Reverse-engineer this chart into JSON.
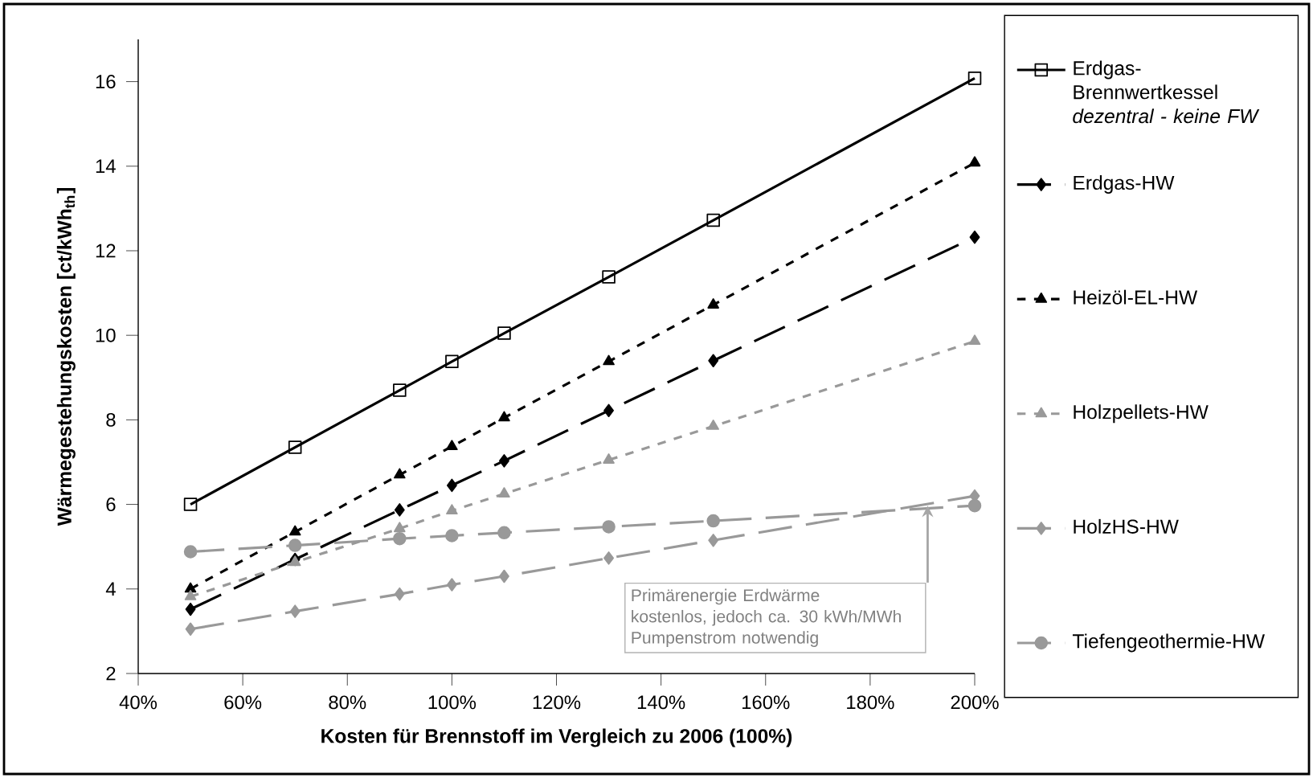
{
  "chart_data": {
    "type": "line",
    "xlabel": "Kosten für Brennstoff im Vergleich zu 2006 (100%)",
    "ylabel": "Wärmegestehungskosten [ct/kWh$_{th}$]",
    "x": [
      50,
      70,
      90,
      100,
      110,
      130,
      150,
      200
    ],
    "xlim": [
      40,
      200
    ],
    "ylim": [
      2,
      17
    ],
    "xticks": [
      {
        "value": 40,
        "label": "40%"
      },
      {
        "value": 60,
        "label": "60%"
      },
      {
        "value": 80,
        "label": "80%"
      },
      {
        "value": 100,
        "label": "100%"
      },
      {
        "value": 120,
        "label": "120%"
      },
      {
        "value": 140,
        "label": "140%"
      },
      {
        "value": 160,
        "label": "160%"
      },
      {
        "value": 180,
        "label": "180%"
      },
      {
        "value": 200,
        "label": "200%"
      }
    ],
    "yticks": [
      2,
      4,
      6,
      8,
      10,
      12,
      14,
      16
    ],
    "grid": false,
    "legend": "right",
    "series": [
      {
        "name": "Erdgas-Brennwertkessel *dezentral - keine FW*",
        "color": "#000000",
        "marker": "square",
        "line_style": "solid",
        "values": [
          6.0,
          7.35,
          8.7,
          9.38,
          10.05,
          11.38,
          12.72,
          16.08
        ]
      },
      {
        "name": "Erdgas-HW",
        "color": "#000000",
        "marker": "diamond",
        "line_style": "dashed",
        "values": [
          3.52,
          4.7,
          5.87,
          6.45,
          7.03,
          8.22,
          9.4,
          12.32
        ]
      },
      {
        "name": "Heizöl-EL-HW",
        "color": "#000000",
        "marker": "triangle",
        "line_style": "dotted",
        "values": [
          4.0,
          5.35,
          6.7,
          7.37,
          8.05,
          9.38,
          10.72,
          14.08
        ]
      },
      {
        "name": "Holzpellets-HW",
        "color": "#999999",
        "marker": "triangle",
        "line_style": "dotted",
        "values": [
          3.82,
          4.63,
          5.43,
          5.85,
          6.25,
          7.05,
          7.85,
          9.86
        ]
      },
      {
        "name": "HolzHS-HW",
        "color": "#999999",
        "marker": "diamond",
        "line_style": "dashed",
        "values": [
          3.05,
          3.47,
          3.88,
          4.1,
          4.3,
          4.73,
          5.15,
          6.2
        ]
      },
      {
        "name": "Tiefengeothermie-HW",
        "color": "#999999",
        "marker": "circle",
        "line_style": "dashed",
        "values": [
          4.88,
          5.03,
          5.19,
          5.26,
          5.33,
          5.47,
          5.61,
          5.97
        ]
      }
    ],
    "annotations": [
      "Primärenergie Erdwärme kostenlos, jedoch ca. 30 kWh/MWh Pumpenstrom notwendig"
    ]
  }
}
